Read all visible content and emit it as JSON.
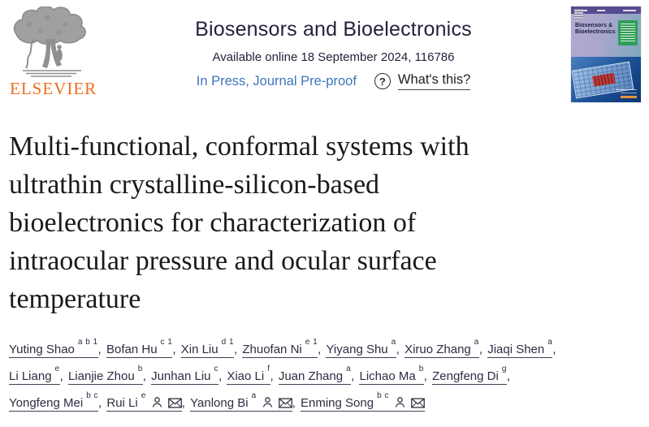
{
  "logo": {
    "wordmark": "ELSEVIER"
  },
  "header": {
    "journal_title": "Biosensors and Bioelectronics",
    "availability": "Available online 18 September 2024, 116786",
    "in_press": "In Press, Journal Pre-proof",
    "question_mark": "?",
    "whats_this": "What's this?"
  },
  "cover": {
    "title_line1": "Biosensors &",
    "title_line2": "Bioelectronics"
  },
  "article": {
    "title_lines": [
      "Multi-functional, conformal systems with",
      "ultrathin crystalline-silicon-based",
      "bioelectronics for characterization of",
      "intraocular pressure and ocular surface",
      "temperature"
    ]
  },
  "authors": {
    "lines": [
      [
        {
          "name": "Yuting Shao",
          "sup": "a b 1",
          "icons": []
        },
        {
          "name": "Bofan Hu",
          "sup": "c 1",
          "icons": []
        },
        {
          "name": "Xin Liu",
          "sup": "d 1",
          "icons": []
        },
        {
          "name": "Zhuofan Ni",
          "sup": "e 1",
          "icons": []
        },
        {
          "name": "Yiyang Shu",
          "sup": "a",
          "icons": []
        },
        {
          "name": "Xiruo Zhang",
          "sup": "a",
          "icons": []
        },
        {
          "name": "Jiaqi Shen",
          "sup": "a",
          "icons": []
        }
      ],
      [
        {
          "name": "Li Liang",
          "sup": "e",
          "icons": []
        },
        {
          "name": "Lianjie Zhou",
          "sup": "b",
          "icons": []
        },
        {
          "name": "Junhan Liu",
          "sup": "c",
          "icons": []
        },
        {
          "name": "Xiao Li",
          "sup": "f",
          "icons": []
        },
        {
          "name": "Juan Zhang",
          "sup": "a",
          "icons": []
        },
        {
          "name": "Lichao Ma",
          "sup": "b",
          "icons": []
        },
        {
          "name": "Zengfeng Di",
          "sup": "g",
          "icons": []
        }
      ],
      [
        {
          "name": "Yongfeng Mei",
          "sup": "b c",
          "icons": []
        },
        {
          "name": "Rui Li",
          "sup": "e",
          "icons": [
            "profile",
            "email"
          ]
        },
        {
          "name": "Yanlong Bi",
          "sup": "a",
          "icons": [
            "profile",
            "email"
          ]
        },
        {
          "name": "Enming Song",
          "sup": "b c",
          "icons": [
            "profile",
            "email"
          ]
        }
      ]
    ]
  },
  "colors": {
    "elsevier_orange": "#EB6E1F",
    "link_blue": "#3E74BA",
    "text_dark": "#23233b"
  }
}
